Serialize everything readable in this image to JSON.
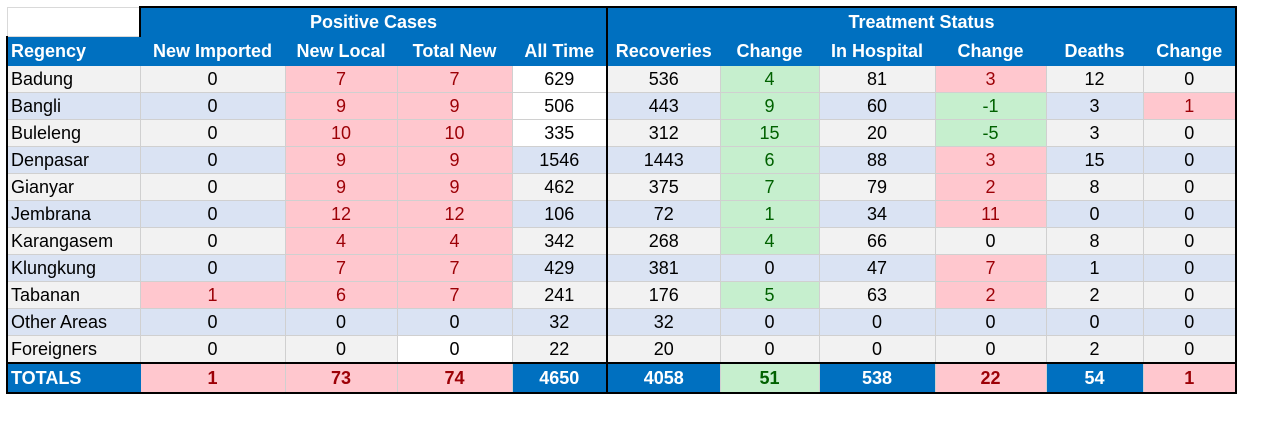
{
  "group_headers": {
    "positive": "Positive Cases",
    "treatment": "Treatment Status"
  },
  "columns": [
    "Regency",
    "New Imported",
    "New Local",
    "Total New",
    "All Time",
    "Recoveries",
    "Change",
    "In Hospital",
    "Change",
    "Deaths",
    "Change"
  ],
  "rows": [
    {
      "name": "Badung",
      "values": [
        "0",
        "7",
        "7",
        "629",
        "536",
        "4",
        "81",
        "3",
        "12",
        "0"
      ]
    },
    {
      "name": "Bangli",
      "values": [
        "0",
        "9",
        "9",
        "506",
        "443",
        "9",
        "60",
        "-1",
        "3",
        "1"
      ]
    },
    {
      "name": "Buleleng",
      "values": [
        "0",
        "10",
        "10",
        "335",
        "312",
        "15",
        "20",
        "-5",
        "3",
        "0"
      ]
    },
    {
      "name": "Denpasar",
      "values": [
        "0",
        "9",
        "9",
        "1546",
        "1443",
        "6",
        "88",
        "3",
        "15",
        "0"
      ]
    },
    {
      "name": "Gianyar",
      "values": [
        "0",
        "9",
        "9",
        "462",
        "375",
        "7",
        "79",
        "2",
        "8",
        "0"
      ]
    },
    {
      "name": "Jembrana",
      "values": [
        "0",
        "12",
        "12",
        "106",
        "72",
        "1",
        "34",
        "11",
        "0",
        "0"
      ]
    },
    {
      "name": "Karangasem",
      "values": [
        "0",
        "4",
        "4",
        "342",
        "268",
        "4",
        "66",
        "0",
        "8",
        "0"
      ]
    },
    {
      "name": "Klungkung",
      "values": [
        "0",
        "7",
        "7",
        "429",
        "381",
        "0",
        "47",
        "7",
        "1",
        "0"
      ]
    },
    {
      "name": "Tabanan",
      "values": [
        "1",
        "6",
        "7",
        "241",
        "176",
        "5",
        "63",
        "2",
        "2",
        "0"
      ]
    },
    {
      "name": "Other Areas",
      "values": [
        "0",
        "0",
        "0",
        "32",
        "32",
        "0",
        "0",
        "0",
        "0",
        "0"
      ]
    },
    {
      "name": "Foreigners",
      "values": [
        "0",
        "0",
        "0",
        "22",
        "20",
        "0",
        "0",
        "0",
        "2",
        "0"
      ]
    }
  ],
  "totals": {
    "name": "TOTALS",
    "values": [
      "1",
      "73",
      "74",
      "4650",
      "4058",
      "51",
      "538",
      "22",
      "54",
      "1"
    ]
  },
  "colors": {
    "header_blue": "#0070c0",
    "red_fill": "#ffc7ce",
    "red_text": "#9c0006",
    "green_fill": "#c6efce",
    "green_text": "#006100",
    "row_gray": "#f2f2f2",
    "row_blue": "#dae3f3"
  }
}
